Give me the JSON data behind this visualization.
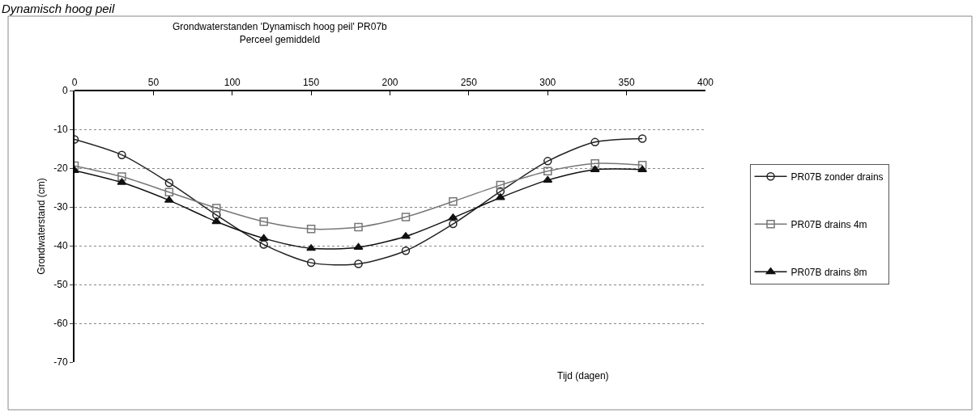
{
  "chart_data": {
    "type": "line",
    "title": "Grondwaterstanden 'Dynamisch hoog peil' PR07b",
    "subtitle": "Perceel gemiddeld",
    "xlabel": "Tijd (dagen)",
    "ylabel": "Grondwaterstand (cm)",
    "annotations": [
      "Dynamisch hoog peil"
    ],
    "x": [
      0,
      30,
      60,
      90,
      120,
      150,
      180,
      210,
      240,
      270,
      300,
      330,
      360
    ],
    "series": [
      {
        "name": "PR07B zonder drains",
        "color": "#222222",
        "marker": "circle",
        "values": [
          -12.6,
          -16.6,
          -23.8,
          -32.1,
          -39.7,
          -44.4,
          -44.7,
          -41.3,
          -34.4,
          -26.0,
          -18.2,
          -13.3,
          -12.4
        ]
      },
      {
        "name": "PR07B drains 4m",
        "color": "#777777",
        "marker": "square",
        "values": [
          -19.4,
          -22.2,
          -26.2,
          -30.3,
          -33.8,
          -35.7,
          -35.2,
          -32.6,
          -28.6,
          -24.4,
          -20.8,
          -18.8,
          -19.2
        ]
      },
      {
        "name": "PR07B drains 8m",
        "color": "#111111",
        "marker": "triangle",
        "values": [
          -20.6,
          -23.7,
          -28.3,
          -33.8,
          -38.1,
          -40.7,
          -40.4,
          -37.6,
          -32.8,
          -27.6,
          -23.1,
          -20.4,
          -20.4
        ]
      }
    ],
    "xlim": [
      0,
      400
    ],
    "xticks": [
      0,
      50,
      100,
      150,
      200,
      250,
      300,
      350,
      400
    ],
    "ylim": [
      -70,
      0
    ],
    "yticks": [
      -70,
      -60,
      -50,
      -40,
      -30,
      -20,
      -10,
      0
    ],
    "grid": "y",
    "legend": "right",
    "line_style": "solid"
  }
}
